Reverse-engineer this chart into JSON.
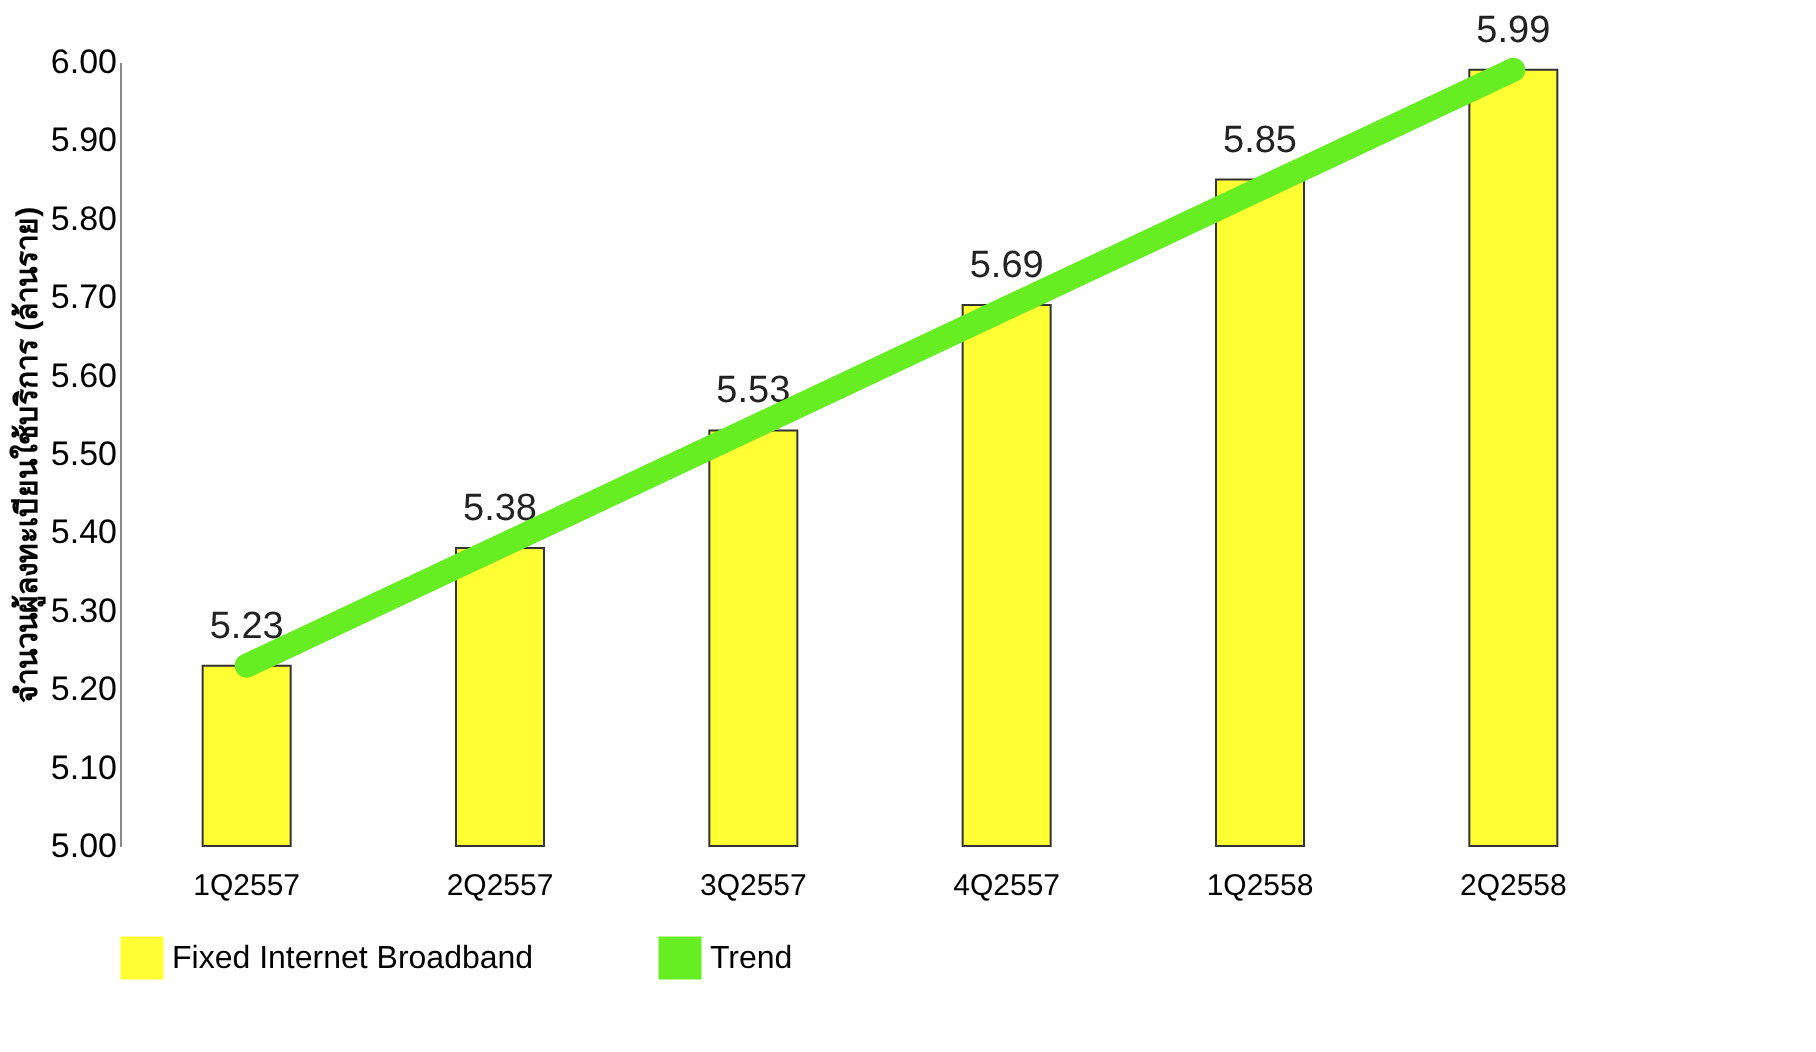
{
  "chart_data": {
    "type": "bar",
    "ylabel": "จำนวนผู้ลงทะเบียนใช้บริการ (ล้านราย)",
    "categories": [
      "1Q2557",
      "2Q2557",
      "3Q2557",
      "4Q2557",
      "1Q2558",
      "2Q2558"
    ],
    "series": [
      {
        "name": "Fixed Internet Broadband",
        "color": "#ffff33",
        "values": [
          5.23,
          5.38,
          5.53,
          5.69,
          5.85,
          5.99
        ],
        "value_labels": [
          "5.23",
          "5.38",
          "5.53",
          "5.69",
          "5.85",
          "5.99"
        ]
      },
      {
        "name": "Trend",
        "type": "line",
        "color": "#66ee22",
        "x": [
          "1Q2557",
          "2Q2558"
        ],
        "values": [
          5.23,
          5.99
        ]
      }
    ],
    "ylim": [
      5.0,
      6.0
    ],
    "yticks": [
      {
        "value": 5.0,
        "label": "5.00"
      },
      {
        "value": 5.1,
        "label": "5.10"
      },
      {
        "value": 5.2,
        "label": "5.20"
      },
      {
        "value": 5.3,
        "label": "5.30"
      },
      {
        "value": 5.4,
        "label": "5.40"
      },
      {
        "value": 5.5,
        "label": "5.50"
      },
      {
        "value": 5.6,
        "label": "5.60"
      },
      {
        "value": 5.7,
        "label": "5.70"
      },
      {
        "value": 5.8,
        "label": "5.80"
      },
      {
        "value": 5.9,
        "label": "5.90"
      },
      {
        "value": 6.0,
        "label": "6.00"
      }
    ],
    "grid": false,
    "legend": "bottom",
    "marker": "none"
  }
}
